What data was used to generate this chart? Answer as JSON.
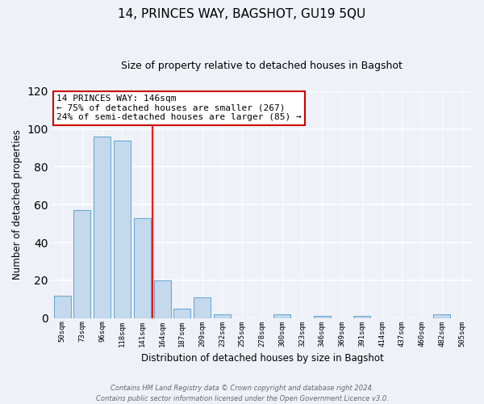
{
  "title": "14, PRINCES WAY, BAGSHOT, GU19 5QU",
  "subtitle": "Size of property relative to detached houses in Bagshot",
  "xlabel": "Distribution of detached houses by size in Bagshot",
  "ylabel": "Number of detached properties",
  "bar_labels": [
    "50sqm",
    "73sqm",
    "96sqm",
    "118sqm",
    "141sqm",
    "164sqm",
    "187sqm",
    "209sqm",
    "232sqm",
    "255sqm",
    "278sqm",
    "300sqm",
    "323sqm",
    "346sqm",
    "369sqm",
    "391sqm",
    "414sqm",
    "437sqm",
    "460sqm",
    "482sqm",
    "505sqm"
  ],
  "bar_values": [
    12,
    57,
    96,
    94,
    53,
    20,
    5,
    11,
    2,
    0,
    0,
    2,
    0,
    1,
    0,
    1,
    0,
    0,
    0,
    2,
    0
  ],
  "bar_color": "#c5d9ed",
  "bar_edge_color": "#6aaad4",
  "vline_x": 4.5,
  "vline_color": "red",
  "annotation_text": "14 PRINCES WAY: 146sqm\n← 75% of detached houses are smaller (267)\n24% of semi-detached houses are larger (85) →",
  "annotation_box_color": "white",
  "annotation_box_edge_color": "#cc0000",
  "ylim": [
    0,
    120
  ],
  "yticks": [
    0,
    20,
    40,
    60,
    80,
    100,
    120
  ],
  "footer_line1": "Contains HM Land Registry data © Crown copyright and database right 2024.",
  "footer_line2": "Contains public sector information licensed under the Open Government Licence v3.0.",
  "background_color": "#eef2f8",
  "grid_color": "white",
  "title_fontsize": 11,
  "subtitle_fontsize": 9,
  "xlabel_fontsize": 8.5,
  "ylabel_fontsize": 8.5,
  "annot_fontsize": 8
}
